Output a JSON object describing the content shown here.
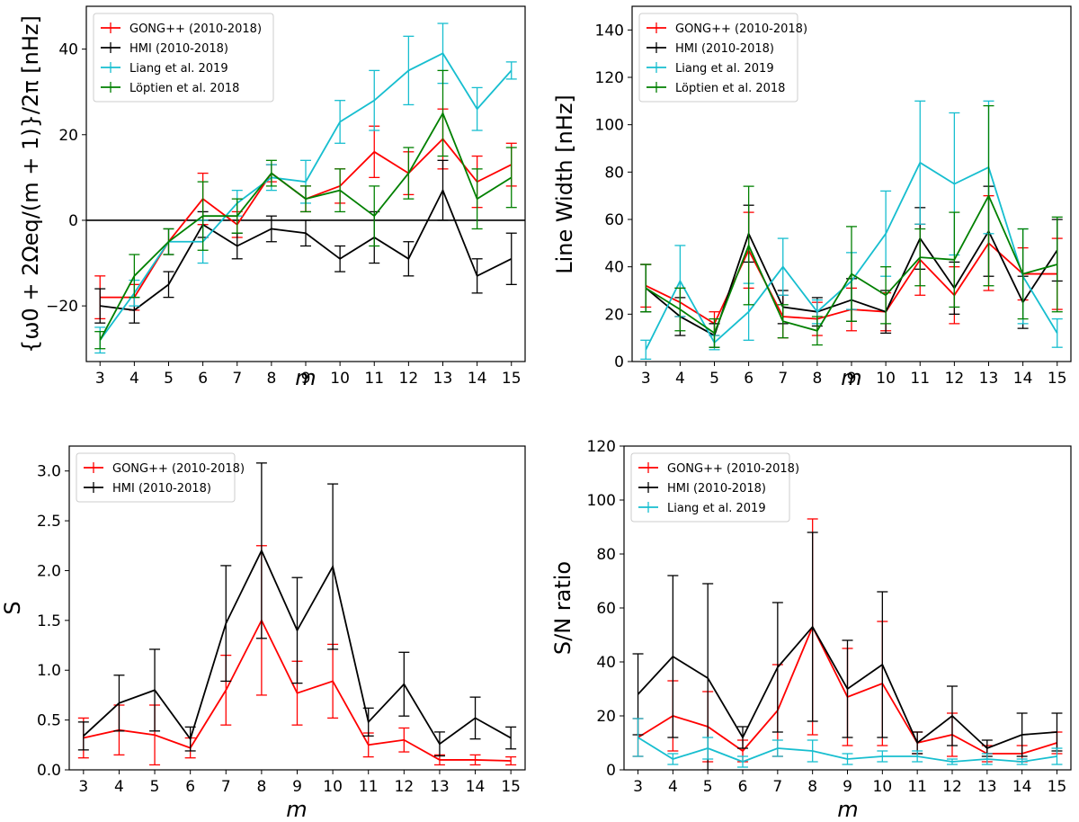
{
  "chart_data": [
    {
      "type": "line",
      "panel": "top-left",
      "title": "",
      "xlabel": "m",
      "ylabel": "{ω0 + 2Ωeq/(m + 1)}/2π [nHz]",
      "x": [
        3,
        4,
        5,
        6,
        7,
        8,
        9,
        10,
        11,
        12,
        13,
        14,
        15
      ],
      "xlim": [
        2.6,
        15.4
      ],
      "ylim": [
        -33,
        50
      ],
      "yticks": [
        -20,
        0,
        20,
        40
      ],
      "xticks": [
        "3",
        "4",
        "5",
        "6",
        "7",
        "8",
        "9",
        "10",
        "11",
        "12",
        "13",
        "14",
        "15"
      ],
      "hline": 0,
      "legend_position": "top-left",
      "series": [
        {
          "name": "GONG++ (2010-2018)",
          "color": "#ff0000",
          "values": [
            -18,
            -18,
            -5,
            5,
            -1,
            11,
            5,
            8,
            16,
            11,
            19,
            9,
            13
          ],
          "errors": [
            5,
            3,
            3,
            6,
            3,
            2,
            3,
            4,
            6,
            5,
            7,
            6,
            5
          ]
        },
        {
          "name": "HMI (2010-2018)",
          "color": "#000000",
          "values": [
            -20,
            -21,
            -15,
            -1,
            -6,
            -2,
            -3,
            -9,
            -4,
            -9,
            7,
            -13,
            -9
          ],
          "errors": [
            4,
            3,
            3,
            3,
            3,
            3,
            3,
            3,
            6,
            4,
            7,
            4,
            6
          ]
        },
        {
          "name": "Liang et al. 2019",
          "color": "#17becf",
          "values": [
            -28,
            -17,
            -5,
            -5,
            4,
            10,
            9,
            23,
            28,
            35,
            39,
            26,
            35
          ],
          "errors": [
            3,
            3,
            3,
            5,
            3,
            3,
            5,
            5,
            7,
            8,
            7,
            5,
            2
          ]
        },
        {
          "name": "Löptien et al. 2018",
          "color": "#008000",
          "values": [
            -28,
            -13,
            -5,
            1,
            1,
            11,
            5,
            7,
            1,
            11,
            25,
            5,
            10
          ],
          "errors": [
            2,
            5,
            3,
            8,
            4,
            3,
            3,
            5,
            7,
            6,
            10,
            7,
            7
          ]
        }
      ]
    },
    {
      "type": "line",
      "panel": "top-right",
      "title": "",
      "xlabel": "m",
      "ylabel": "Line Width [nHz]",
      "x": [
        3,
        4,
        5,
        6,
        7,
        8,
        9,
        10,
        11,
        12,
        13,
        14,
        15
      ],
      "xlim": [
        2.6,
        15.4
      ],
      "ylim": [
        0,
        150
      ],
      "yticks": [
        0,
        20,
        40,
        60,
        80,
        100,
        120,
        140
      ],
      "xticks": [
        "3",
        "4",
        "5",
        "6",
        "7",
        "8",
        "9",
        "10",
        "11",
        "12",
        "13",
        "14",
        "15"
      ],
      "legend_position": "top-left",
      "series": [
        {
          "name": "GONG++ (2010-2018)",
          "color": "#ff0000",
          "values": [
            32,
            25,
            16,
            47,
            19,
            18,
            22,
            21,
            43,
            28,
            50,
            37,
            37
          ],
          "errors": [
            9,
            6,
            5,
            16,
            9,
            7,
            9,
            8,
            15,
            12,
            20,
            11,
            15
          ]
        },
        {
          "name": "HMI (2010-2018)",
          "color": "#000000",
          "values": [
            31,
            19,
            11,
            54,
            23,
            21,
            26,
            21,
            52,
            31,
            55,
            25,
            47
          ],
          "errors": [
            10,
            8,
            5,
            12,
            7,
            6,
            9,
            9,
            13,
            11,
            19,
            11,
            13
          ]
        },
        {
          "name": "Liang et al. 2019",
          "color": "#17becf",
          "values": [
            5,
            34,
            8,
            21,
            40,
            21,
            34,
            54,
            84,
            75,
            82,
            36,
            12
          ],
          "errors": [
            4,
            15,
            3,
            12,
            12,
            5,
            12,
            18,
            26,
            30,
            28,
            20,
            6
          ]
        },
        {
          "name": "Löptien et al. 2018",
          "color": "#008000",
          "values": [
            31,
            22,
            12,
            49,
            17,
            13,
            37,
            28,
            44,
            43,
            70,
            37,
            41
          ],
          "errors": [
            10,
            9,
            6,
            25,
            7,
            6,
            20,
            12,
            12,
            20,
            38,
            19,
            20
          ]
        }
      ]
    },
    {
      "type": "line",
      "panel": "bottom-left",
      "title": "",
      "xlabel": "m",
      "ylabel": "S",
      "x": [
        3,
        4,
        5,
        6,
        7,
        8,
        9,
        10,
        11,
        12,
        13,
        14,
        15
      ],
      "xlim": [
        2.6,
        15.4
      ],
      "ylim": [
        0,
        3.25
      ],
      "yticks": [
        0.0,
        0.5,
        1.0,
        1.5,
        2.0,
        2.5,
        3.0
      ],
      "ytick_labels": [
        "0.0",
        "0.5",
        "1.0",
        "1.5",
        "2.0",
        "2.5",
        "3.0"
      ],
      "xticks": [
        "3",
        "4",
        "5",
        "6",
        "7",
        "8",
        "9",
        "10",
        "11",
        "12",
        "13",
        "14",
        "15"
      ],
      "legend_position": "top-left",
      "series": [
        {
          "name": "GONG++ (2010-2018)",
          "color": "#ff0000",
          "values": [
            0.32,
            0.4,
            0.35,
            0.22,
            0.8,
            1.5,
            0.77,
            0.89,
            0.25,
            0.3,
            0.1,
            0.1,
            0.09
          ],
          "errors": [
            0.2,
            0.25,
            0.3,
            0.1,
            0.35,
            0.75,
            0.32,
            0.37,
            0.12,
            0.12,
            0.05,
            0.05,
            0.04
          ]
        },
        {
          "name": "HMI (2010-2018)",
          "color": "#000000",
          "values": [
            0.34,
            0.67,
            0.8,
            0.31,
            1.47,
            2.2,
            1.4,
            2.04,
            0.48,
            0.86,
            0.26,
            0.52,
            0.32
          ],
          "errors": [
            0.14,
            0.28,
            0.41,
            0.12,
            0.58,
            0.88,
            0.53,
            0.83,
            0.14,
            0.32,
            0.12,
            0.21,
            0.11
          ]
        }
      ]
    },
    {
      "type": "line",
      "panel": "bottom-right",
      "title": "",
      "xlabel": "m",
      "ylabel": "S/N ratio",
      "x": [
        3,
        4,
        5,
        6,
        7,
        8,
        9,
        10,
        11,
        12,
        13,
        14,
        15
      ],
      "xlim": [
        2.6,
        15.4
      ],
      "ylim": [
        0,
        120
      ],
      "yticks": [
        0,
        20,
        40,
        60,
        80,
        100,
        120
      ],
      "xticks": [
        "3",
        "4",
        "5",
        "6",
        "7",
        "8",
        "9",
        "10",
        "11",
        "12",
        "13",
        "14",
        "15"
      ],
      "legend_position": "top-left",
      "series": [
        {
          "name": "GONG++ (2010-2018)",
          "color": "#ff0000",
          "values": [
            12,
            20,
            16,
            7,
            22,
            53,
            27,
            32,
            10,
            13,
            6,
            6,
            10
          ],
          "errors": [
            7,
            13,
            13,
            4,
            17,
            40,
            18,
            23,
            4,
            8,
            3,
            3,
            4
          ]
        },
        {
          "name": "HMI (2010-2018)",
          "color": "#000000",
          "values": [
            28,
            42,
            34,
            12,
            38,
            53,
            30,
            39,
            10,
            20,
            8,
            13,
            14
          ],
          "errors": [
            15,
            30,
            35,
            4,
            24,
            35,
            18,
            27,
            4,
            11,
            3,
            8,
            7
          ]
        },
        {
          "name": "Liang et al. 2019",
          "color": "#17becf",
          "values": [
            12,
            4,
            8,
            3,
            8,
            7,
            4,
            5,
            5,
            3,
            4,
            3,
            5
          ],
          "errors": [
            7,
            2,
            4,
            2,
            3,
            4,
            2,
            2,
            2,
            1,
            2,
            1,
            3
          ]
        }
      ]
    }
  ]
}
